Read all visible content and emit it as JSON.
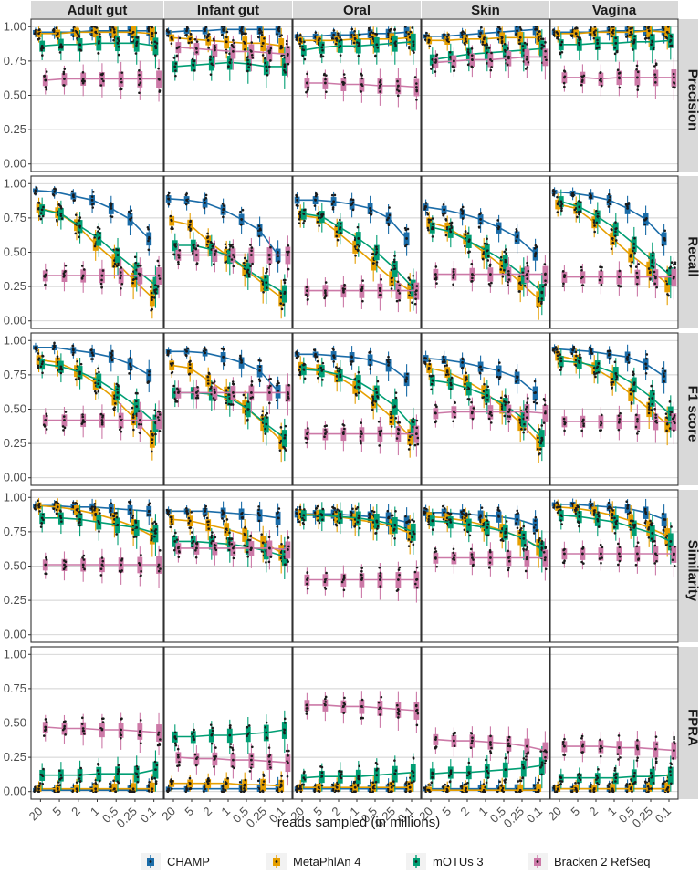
{
  "chart_data": {
    "type": "box-line",
    "xlabel": "reads sampled (in millions)",
    "x_categories": [
      "20",
      "5",
      "2",
      "1",
      "0.5",
      "0.25",
      "0.1"
    ],
    "columns": [
      "Adult gut",
      "Infant gut",
      "Oral",
      "Skin",
      "Vagina"
    ],
    "rows": [
      "Precision",
      "Recall",
      "F1 score",
      "Similarity",
      "FPRA"
    ],
    "ylim": [
      0,
      1
    ],
    "y_ticks": [
      "0.00",
      "0.25",
      "0.50",
      "0.75",
      "1.00"
    ],
    "grid": true,
    "legend_position": "bottom",
    "series": [
      {
        "name": "CHAMP",
        "color": "#1b6ca8"
      },
      {
        "name": "MetaPhlAn 4",
        "color": "#e69f00"
      },
      {
        "name": "mOTUs 3",
        "color": "#009e73"
      },
      {
        "name": "Bracken 2 RefSeq",
        "color": "#cc79a7"
      }
    ],
    "medians": {
      "Precision": {
        "Adult gut": [
          [
            0.96,
            0.96,
            0.96,
            0.97,
            0.97,
            0.97,
            0.97
          ],
          [
            0.95,
            0.95,
            0.96,
            0.96,
            0.96,
            0.96,
            0.95
          ],
          [
            0.86,
            0.87,
            0.87,
            0.88,
            0.88,
            0.88,
            0.86
          ],
          [
            0.61,
            0.62,
            0.62,
            0.62,
            0.62,
            0.62,
            0.62
          ]
        ],
        "Infant gut": [
          [
            0.96,
            0.97,
            0.97,
            0.98,
            0.98,
            0.98,
            0.98
          ],
          [
            0.92,
            0.91,
            0.9,
            0.89,
            0.88,
            0.88,
            0.86
          ],
          [
            0.71,
            0.72,
            0.73,
            0.74,
            0.73,
            0.71,
            0.71
          ],
          [
            0.85,
            0.84,
            0.83,
            0.82,
            0.82,
            0.81,
            0.8
          ]
        ],
        "Oral": [
          [
            0.93,
            0.93,
            0.94,
            0.94,
            0.95,
            0.95,
            0.96
          ],
          [
            0.9,
            0.9,
            0.9,
            0.91,
            0.91,
            0.91,
            0.92
          ],
          [
            0.83,
            0.85,
            0.86,
            0.86,
            0.87,
            0.88,
            0.89
          ],
          [
            0.59,
            0.59,
            0.58,
            0.58,
            0.57,
            0.57,
            0.56
          ]
        ],
        "Skin": [
          [
            0.93,
            0.93,
            0.94,
            0.95,
            0.96,
            0.97,
            0.98
          ],
          [
            0.9,
            0.9,
            0.91,
            0.91,
            0.92,
            0.92,
            0.92
          ],
          [
            0.76,
            0.78,
            0.8,
            0.81,
            0.82,
            0.83,
            0.84
          ],
          [
            0.74,
            0.75,
            0.76,
            0.76,
            0.77,
            0.78,
            0.78
          ]
        ],
        "Vagina": [
          [
            0.96,
            0.96,
            0.96,
            0.97,
            0.97,
            0.97,
            0.98
          ],
          [
            0.95,
            0.95,
            0.96,
            0.96,
            0.96,
            0.97,
            0.96
          ],
          [
            0.87,
            0.87,
            0.88,
            0.88,
            0.89,
            0.89,
            0.9
          ],
          [
            0.63,
            0.63,
            0.62,
            0.63,
            0.63,
            0.63,
            0.63
          ]
        ]
      },
      "Recall": {
        "Adult gut": [
          [
            0.95,
            0.94,
            0.91,
            0.88,
            0.82,
            0.74,
            0.6
          ],
          [
            0.82,
            0.79,
            0.7,
            0.56,
            0.44,
            0.3,
            0.17
          ],
          [
            0.81,
            0.78,
            0.69,
            0.6,
            0.48,
            0.37,
            0.26
          ],
          [
            0.33,
            0.33,
            0.33,
            0.33,
            0.33,
            0.33,
            0.33
          ]
        ],
        "Infant gut": [
          [
            0.89,
            0.88,
            0.86,
            0.81,
            0.74,
            0.66,
            0.48
          ],
          [
            0.73,
            0.7,
            0.58,
            0.48,
            0.38,
            0.27,
            0.17
          ],
          [
            0.55,
            0.55,
            0.52,
            0.47,
            0.37,
            0.28,
            0.2
          ],
          [
            0.48,
            0.48,
            0.48,
            0.48,
            0.48,
            0.48,
            0.48
          ]
        ],
        "Oral": [
          [
            0.88,
            0.88,
            0.87,
            0.85,
            0.82,
            0.75,
            0.6
          ],
          [
            0.77,
            0.75,
            0.65,
            0.54,
            0.42,
            0.31,
            0.22
          ],
          [
            0.78,
            0.76,
            0.68,
            0.6,
            0.5,
            0.38,
            0.24
          ],
          [
            0.22,
            0.22,
            0.22,
            0.22,
            0.22,
            0.22,
            0.22
          ]
        ],
        "Skin": [
          [
            0.83,
            0.81,
            0.78,
            0.74,
            0.68,
            0.61,
            0.49
          ],
          [
            0.72,
            0.68,
            0.6,
            0.5,
            0.4,
            0.28,
            0.16
          ],
          [
            0.68,
            0.65,
            0.58,
            0.51,
            0.43,
            0.33,
            0.21
          ],
          [
            0.34,
            0.34,
            0.34,
            0.34,
            0.34,
            0.34,
            0.34
          ]
        ],
        "Vagina": [
          [
            0.94,
            0.93,
            0.91,
            0.88,
            0.82,
            0.74,
            0.6
          ],
          [
            0.85,
            0.82,
            0.72,
            0.6,
            0.48,
            0.38,
            0.27
          ],
          [
            0.87,
            0.83,
            0.76,
            0.67,
            0.56,
            0.44,
            0.33
          ],
          [
            0.32,
            0.32,
            0.32,
            0.32,
            0.32,
            0.32,
            0.32
          ]
        ]
      },
      "F1 score": {
        "Adult gut": [
          [
            0.95,
            0.95,
            0.93,
            0.91,
            0.88,
            0.83,
            0.75
          ],
          [
            0.86,
            0.84,
            0.78,
            0.69,
            0.58,
            0.44,
            0.28
          ],
          [
            0.83,
            0.81,
            0.77,
            0.71,
            0.62,
            0.52,
            0.4
          ],
          [
            0.42,
            0.42,
            0.42,
            0.42,
            0.42,
            0.42,
            0.42
          ]
        ],
        "Infant gut": [
          [
            0.92,
            0.92,
            0.91,
            0.88,
            0.84,
            0.78,
            0.63
          ],
          [
            0.82,
            0.8,
            0.71,
            0.62,
            0.52,
            0.4,
            0.27
          ],
          [
            0.62,
            0.62,
            0.61,
            0.58,
            0.5,
            0.39,
            0.29
          ],
          [
            0.62,
            0.62,
            0.62,
            0.62,
            0.62,
            0.62,
            0.62
          ]
        ],
        "Oral": [
          [
            0.9,
            0.9,
            0.89,
            0.88,
            0.86,
            0.82,
            0.72
          ],
          [
            0.81,
            0.79,
            0.74,
            0.66,
            0.56,
            0.44,
            0.3
          ],
          [
            0.79,
            0.78,
            0.75,
            0.7,
            0.62,
            0.52,
            0.37
          ],
          [
            0.32,
            0.32,
            0.32,
            0.32,
            0.32,
            0.32,
            0.32
          ]
        ],
        "Skin": [
          [
            0.87,
            0.86,
            0.84,
            0.81,
            0.78,
            0.73,
            0.62
          ],
          [
            0.8,
            0.77,
            0.71,
            0.63,
            0.52,
            0.4,
            0.26
          ],
          [
            0.71,
            0.69,
            0.65,
            0.6,
            0.53,
            0.43,
            0.29
          ],
          [
            0.47,
            0.48,
            0.48,
            0.48,
            0.48,
            0.48,
            0.47
          ]
        ],
        "Vagina": [
          [
            0.94,
            0.93,
            0.92,
            0.9,
            0.88,
            0.83,
            0.74
          ],
          [
            0.89,
            0.86,
            0.8,
            0.72,
            0.61,
            0.5,
            0.39
          ],
          [
            0.85,
            0.84,
            0.81,
            0.76,
            0.68,
            0.58,
            0.46
          ],
          [
            0.41,
            0.41,
            0.41,
            0.41,
            0.41,
            0.41,
            0.41
          ]
        ]
      },
      "Similarity": {
        "Adult gut": [
          [
            0.94,
            0.94,
            0.93,
            0.93,
            0.92,
            0.91,
            0.9
          ],
          [
            0.94,
            0.93,
            0.91,
            0.88,
            0.84,
            0.79,
            0.72
          ],
          [
            0.85,
            0.85,
            0.84,
            0.82,
            0.8,
            0.78,
            0.74
          ],
          [
            0.51,
            0.51,
            0.51,
            0.51,
            0.51,
            0.51,
            0.51
          ]
        ],
        "Infant gut": [
          [
            0.9,
            0.9,
            0.9,
            0.89,
            0.88,
            0.87,
            0.85
          ],
          [
            0.84,
            0.83,
            0.8,
            0.77,
            0.73,
            0.67,
            0.6
          ],
          [
            0.68,
            0.68,
            0.67,
            0.66,
            0.64,
            0.61,
            0.57
          ],
          [
            0.63,
            0.63,
            0.63,
            0.63,
            0.63,
            0.63,
            0.62
          ]
        ],
        "Oral": [
          [
            0.88,
            0.88,
            0.88,
            0.87,
            0.86,
            0.85,
            0.82
          ],
          [
            0.88,
            0.87,
            0.86,
            0.84,
            0.82,
            0.79,
            0.74
          ],
          [
            0.87,
            0.87,
            0.86,
            0.85,
            0.83,
            0.8,
            0.75
          ],
          [
            0.4,
            0.4,
            0.4,
            0.4,
            0.4,
            0.4,
            0.4
          ]
        ],
        "Skin": [
          [
            0.89,
            0.89,
            0.88,
            0.87,
            0.86,
            0.84,
            0.8
          ],
          [
            0.86,
            0.85,
            0.83,
            0.8,
            0.76,
            0.71,
            0.64
          ],
          [
            0.83,
            0.82,
            0.8,
            0.78,
            0.75,
            0.7,
            0.62
          ],
          [
            0.56,
            0.56,
            0.56,
            0.56,
            0.56,
            0.56,
            0.56
          ]
        ],
        "Vagina": [
          [
            0.95,
            0.95,
            0.94,
            0.93,
            0.92,
            0.89,
            0.84
          ],
          [
            0.93,
            0.92,
            0.9,
            0.87,
            0.83,
            0.78,
            0.72
          ],
          [
            0.87,
            0.86,
            0.84,
            0.82,
            0.78,
            0.74,
            0.68
          ],
          [
            0.59,
            0.59,
            0.59,
            0.59,
            0.59,
            0.59,
            0.59
          ]
        ]
      },
      "FPRA": {
        "Adult gut": [
          [
            0.01,
            0.01,
            0.01,
            0.01,
            0.01,
            0.01,
            0.01
          ],
          [
            0.02,
            0.02,
            0.02,
            0.02,
            0.02,
            0.02,
            0.02
          ],
          [
            0.12,
            0.12,
            0.12,
            0.13,
            0.13,
            0.13,
            0.16
          ],
          [
            0.47,
            0.46,
            0.46,
            0.45,
            0.45,
            0.44,
            0.43
          ]
        ],
        "Infant gut": [
          [
            0.02,
            0.02,
            0.02,
            0.02,
            0.02,
            0.02,
            0.02
          ],
          [
            0.06,
            0.06,
            0.06,
            0.06,
            0.05,
            0.05,
            0.04
          ],
          [
            0.4,
            0.4,
            0.41,
            0.41,
            0.42,
            0.43,
            0.45
          ],
          [
            0.25,
            0.24,
            0.24,
            0.23,
            0.23,
            0.22,
            0.21
          ]
        ],
        "Oral": [
          [
            0.02,
            0.02,
            0.02,
            0.02,
            0.02,
            0.02,
            0.02
          ],
          [
            0.03,
            0.03,
            0.03,
            0.03,
            0.03,
            0.03,
            0.03
          ],
          [
            0.1,
            0.11,
            0.11,
            0.11,
            0.12,
            0.13,
            0.14
          ],
          [
            0.63,
            0.63,
            0.62,
            0.62,
            0.61,
            0.6,
            0.59
          ]
        ],
        "Skin": [
          [
            0.02,
            0.02,
            0.02,
            0.02,
            0.02,
            0.02,
            0.02
          ],
          [
            0.01,
            0.01,
            0.01,
            0.01,
            0.01,
            0.01,
            0.01
          ],
          [
            0.13,
            0.14,
            0.14,
            0.15,
            0.16,
            0.17,
            0.19
          ],
          [
            0.38,
            0.37,
            0.37,
            0.36,
            0.35,
            0.33,
            0.3
          ]
        ],
        "Vagina": [
          [
            0.02,
            0.02,
            0.02,
            0.02,
            0.02,
            0.02,
            0.02
          ],
          [
            0.02,
            0.02,
            0.02,
            0.02,
            0.02,
            0.02,
            0.02
          ],
          [
            0.1,
            0.1,
            0.1,
            0.1,
            0.11,
            0.11,
            0.12
          ],
          [
            0.33,
            0.33,
            0.33,
            0.32,
            0.32,
            0.31,
            0.3
          ]
        ]
      }
    }
  }
}
